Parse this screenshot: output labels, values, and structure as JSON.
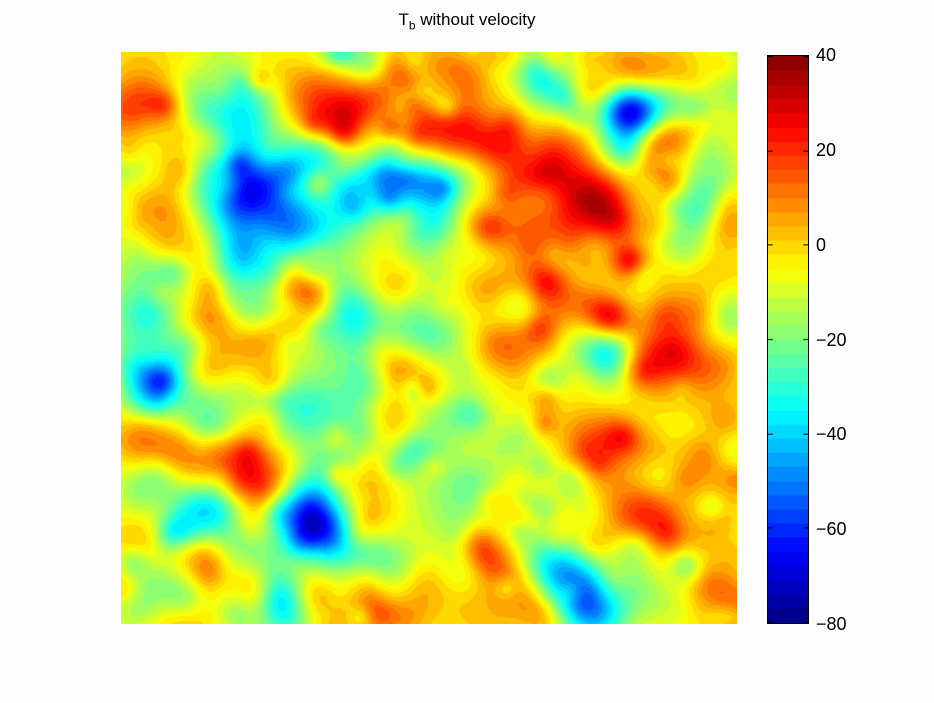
{
  "chart_data": {
    "type": "heatmap",
    "title_main": "T",
    "title_sub": "b",
    "title_rest": " without velocity",
    "colormap": "jet",
    "colorbar": {
      "min": -80,
      "max": 40,
      "ticks": [
        {
          "value": 40,
          "label": "40"
        },
        {
          "value": 20,
          "label": "20"
        },
        {
          "value": 0,
          "label": "0"
        },
        {
          "value": -20,
          "label": "−20"
        },
        {
          "value": -40,
          "label": "−40"
        },
        {
          "value": -60,
          "label": "−60"
        },
        {
          "value": -80,
          "label": "−80"
        }
      ]
    },
    "x_ticks": "none",
    "y_ticks": "none",
    "contour_levels": 40,
    "field_description": "random Gaussian-like brightness temperature field, mean about -10, range about -80 to 40"
  }
}
